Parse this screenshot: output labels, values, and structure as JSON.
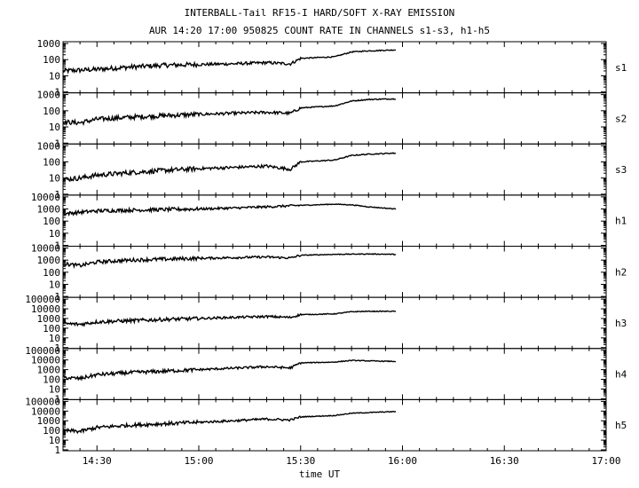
{
  "chart_data": {
    "type": "line",
    "title": "INTERBALL-Tail RF15-I HARD/SOFT X-RAY EMISSION",
    "subtitle": "AUR 14:20 17:00 950825  COUNT RATE IN CHANNELS s1-s3, h1-h5",
    "xlabel": "time UT",
    "x_ticks": [
      "14:30",
      "15:00",
      "15:30",
      "16:00",
      "16:30",
      "17:00"
    ],
    "x_range": [
      "14:20",
      "17:00"
    ],
    "y_scale": "log",
    "grid": false,
    "line_color": "#000000",
    "panels": [
      {
        "name": "s1",
        "y_ticks": [
          "1",
          "10",
          "100",
          "1000"
        ],
        "ylim": [
          1,
          1000
        ],
        "x": [
          "14:20",
          "14:30",
          "14:40",
          "14:50",
          "15:00",
          "15:10",
          "15:20",
          "15:27",
          "15:30",
          "15:40",
          "15:45",
          "15:50",
          "15:58"
        ],
        "values": [
          20,
          25,
          35,
          45,
          50,
          55,
          65,
          55,
          120,
          150,
          300,
          350,
          400
        ]
      },
      {
        "name": "s2",
        "y_ticks": [
          "1",
          "10",
          "100",
          "1000"
        ],
        "ylim": [
          1,
          1000
        ],
        "x": [
          "14:20",
          "14:25",
          "14:30",
          "14:40",
          "14:50",
          "15:00",
          "15:10",
          "15:20",
          "15:27",
          "15:30",
          "15:40",
          "15:45",
          "15:50",
          "15:58"
        ],
        "values": [
          20,
          18,
          30,
          40,
          50,
          60,
          70,
          80,
          70,
          150,
          200,
          400,
          500,
          550
        ]
      },
      {
        "name": "s3",
        "y_ticks": [
          "1",
          "10",
          "100",
          "1000"
        ],
        "ylim": [
          1,
          1000
        ],
        "x": [
          "14:20",
          "14:25",
          "14:30",
          "14:40",
          "14:50",
          "15:00",
          "15:10",
          "15:20",
          "15:27",
          "15:30",
          "15:40",
          "15:45",
          "15:50",
          "15:58"
        ],
        "values": [
          8,
          10,
          15,
          22,
          30,
          38,
          45,
          55,
          35,
          100,
          130,
          250,
          300,
          350
        ]
      },
      {
        "name": "h1",
        "y_ticks": [
          "1",
          "10",
          "100",
          "1000",
          "10000"
        ],
        "ylim": [
          1,
          10000
        ],
        "x": [
          "14:20",
          "14:30",
          "14:40",
          "14:50",
          "15:00",
          "15:10",
          "15:20",
          "15:30",
          "15:40",
          "15:45",
          "15:50",
          "15:58"
        ],
        "values": [
          400,
          700,
          800,
          900,
          1000,
          1200,
          1500,
          2000,
          2500,
          2200,
          1500,
          1000
        ]
      },
      {
        "name": "h2",
        "y_ticks": [
          "1",
          "10",
          "100",
          "1000",
          "10000"
        ],
        "ylim": [
          1,
          10000
        ],
        "x": [
          "14:20",
          "14:25",
          "14:30",
          "14:40",
          "14:50",
          "15:00",
          "15:10",
          "15:20",
          "15:27",
          "15:30",
          "15:40",
          "15:50",
          "15:58"
        ],
        "values": [
          500,
          350,
          700,
          1000,
          1200,
          1400,
          1600,
          1800,
          1500,
          2500,
          3000,
          3200,
          3000
        ]
      },
      {
        "name": "h3",
        "y_ticks": [
          "1",
          "10",
          "100",
          "1000",
          "10000",
          "100000"
        ],
        "ylim": [
          1,
          100000
        ],
        "x": [
          "14:20",
          "14:25",
          "14:30",
          "14:40",
          "14:50",
          "15:00",
          "15:10",
          "15:20",
          "15:27",
          "15:30",
          "15:40",
          "15:45",
          "15:50",
          "15:58"
        ],
        "values": [
          300,
          250,
          450,
          600,
          800,
          1000,
          1300,
          1600,
          1300,
          2500,
          3000,
          5000,
          5500,
          5500
        ]
      },
      {
        "name": "h4",
        "y_ticks": [
          "1",
          "10",
          "100",
          "1000",
          "10000",
          "100000"
        ],
        "ylim": [
          1,
          100000
        ],
        "x": [
          "14:20",
          "14:25",
          "14:30",
          "14:40",
          "14:50",
          "15:00",
          "15:10",
          "15:20",
          "15:27",
          "15:30",
          "15:40",
          "15:45",
          "15:50",
          "15:58"
        ],
        "values": [
          150,
          120,
          300,
          500,
          700,
          1000,
          1400,
          2000,
          1500,
          5000,
          6000,
          9000,
          8000,
          7000
        ]
      },
      {
        "name": "h5",
        "y_ticks": [
          "1",
          "10",
          "100",
          "1000",
          "10000",
          "100000"
        ],
        "ylim": [
          1,
          100000
        ],
        "x": [
          "14:20",
          "14:25",
          "14:30",
          "14:40",
          "14:50",
          "15:00",
          "15:10",
          "15:20",
          "15:27",
          "15:30",
          "15:40",
          "15:45",
          "15:50",
          "15:58"
        ],
        "values": [
          100,
          80,
          200,
          350,
          500,
          700,
          1000,
          1500,
          1200,
          2500,
          3500,
          6000,
          7000,
          9000
        ]
      }
    ]
  }
}
